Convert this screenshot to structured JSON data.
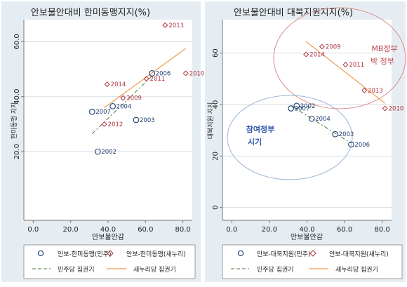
{
  "colors": {
    "outer_bg": "#e6edf2",
    "plot_bg": "#ffffff",
    "title_bg": "#e6edf2",
    "axis": "#777777",
    "grid": "#d6dee5",
    "circle": "#1f3f73",
    "diamond": "#b0343c",
    "dashed": "#4a7a36",
    "solid": "#ee9a4d",
    "red_ellipse": "#dd8a8a",
    "blue_ellipse": "#9ab6d6",
    "red_annot": "#c0444a",
    "blue_annot": "#2f56a8"
  },
  "chart_data": [
    {
      "type": "scatter",
      "title": "안보불안대비 한미동맹지지(%)",
      "xlabel": "안보불안감",
      "ylabel": "한미동맹 지지",
      "xlim": [
        -5,
        85
      ],
      "ylim": [
        -5,
        68
      ],
      "x_ticks": [
        0,
        20,
        40,
        60,
        80
      ],
      "x_tick_labels": [
        "0.0",
        "20.0",
        "40.0",
        "60.0",
        "80.0"
      ],
      "y_ticks": [
        20,
        40,
        60
      ],
      "y_tick_labels": [
        "20.0",
        "40.0",
        "60.0"
      ],
      "grid": true,
      "series": [
        {
          "name": "안보-한미동맹(민주)",
          "marker": "circle",
          "points": [
            {
              "x": 34.5,
              "y": 20.0,
              "label": "2002"
            },
            {
              "x": 55.0,
              "y": 31.5,
              "label": "2003"
            },
            {
              "x": 42.5,
              "y": 36.5,
              "label": "2004"
            },
            {
              "x": 63.5,
              "y": 48.5,
              "label": "2006"
            },
            {
              "x": 31.5,
              "y": 34.5,
              "label": "2007"
            }
          ]
        },
        {
          "name": "안보-한미동맹(새누리)",
          "marker": "diamond",
          "points": [
            {
              "x": 38.0,
              "y": 30.0,
              "label": "2012"
            },
            {
              "x": 48.0,
              "y": 39.5,
              "label": "2009"
            },
            {
              "x": 39.5,
              "y": 44.5,
              "label": "2014"
            },
            {
              "x": 60.5,
              "y": 46.5,
              "label": "2011"
            },
            {
              "x": 81.5,
              "y": 48.5,
              "label": "2010"
            },
            {
              "x": 70.5,
              "y": 66.0,
              "label": "2013"
            }
          ]
        },
        {
          "name": "민주당 집권기",
          "line": "dashed",
          "points": [
            {
              "x": 31.5,
              "y": 26.5
            },
            {
              "x": 63.5,
              "y": 47.5
            }
          ]
        },
        {
          "name": "새누리당 집권기",
          "line": "solid",
          "points": [
            {
              "x": 38.0,
              "y": 36.0
            },
            {
              "x": 81.5,
              "y": 57.5
            }
          ]
        }
      ]
    },
    {
      "type": "scatter",
      "title": "안보불안대비 대북지원지지(%)",
      "xlabel": "안보불안감",
      "ylabel": "대북지원 지지",
      "xlim": [
        -5,
        85
      ],
      "ylim": [
        -5,
        73
      ],
      "x_ticks": [
        0,
        20,
        40,
        60,
        80
      ],
      "x_tick_labels": [
        "0.0",
        "20.0",
        "40.0",
        "60.0",
        "80.0"
      ],
      "y_ticks": [
        0,
        20,
        40,
        60
      ],
      "y_tick_labels": [
        "0",
        "20",
        "40",
        "60"
      ],
      "grid": true,
      "annotations": [
        {
          "lines": [
            "MB정부",
            "박 정부"
          ],
          "style": "red"
        },
        {
          "lines": [
            "참여정부",
            "시기"
          ],
          "style": "blue"
        }
      ],
      "series": [
        {
          "name": "안보-대북지원(민주)",
          "marker": "circle",
          "points": [
            {
              "x": 34.5,
              "y": 39.5,
              "label": "2002"
            },
            {
              "x": 55.0,
              "y": 28.5,
              "label": "2003"
            },
            {
              "x": 42.5,
              "y": 34.5,
              "label": "2004"
            },
            {
              "x": 63.5,
              "y": 24.5,
              "label": "2006"
            },
            {
              "x": 31.5,
              "y": 38.5,
              "label": "2007"
            }
          ]
        },
        {
          "name": "안보-대북지원(새누리)",
          "marker": "diamond",
          "points": [
            {
              "x": 48.0,
              "y": 62.5,
              "label": "2009"
            },
            {
              "x": 39.5,
              "y": 59.5,
              "label": "2014"
            },
            {
              "x": 60.5,
              "y": 55.5,
              "label": "2011"
            },
            {
              "x": 70.5,
              "y": 45.5,
              "label": "2013"
            },
            {
              "x": 81.5,
              "y": 38.5,
              "label": "2010"
            }
          ]
        },
        {
          "name": "민주당 집권기",
          "line": "dashed",
          "points": [
            {
              "x": 31.5,
              "y": 39.5
            },
            {
              "x": 63.5,
              "y": 25.0
            }
          ]
        },
        {
          "name": "새누리당 집권기",
          "line": "solid",
          "points": [
            {
              "x": 39.5,
              "y": 64.5
            },
            {
              "x": 81.5,
              "y": 40.5
            }
          ]
        }
      ]
    }
  ]
}
